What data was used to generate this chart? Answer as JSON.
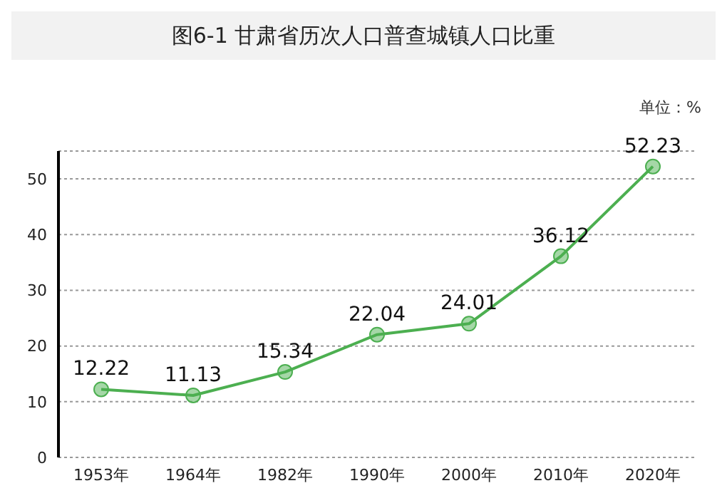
{
  "chart_data": {
    "type": "line",
    "title": "图6-1 甘肃省历次人口普查城镇人口比重",
    "annotations": [
      "单位：%"
    ],
    "categories": [
      "1953年",
      "1964年",
      "1982年",
      "1990年",
      "2000年",
      "2010年",
      "2020年"
    ],
    "series": [
      {
        "color": "#4caf50",
        "values": [
          12.22,
          11.13,
          15.34,
          22.04,
          24.01,
          36.12,
          52.23
        ]
      }
    ],
    "ylim": [
      0,
      55
    ],
    "yticks": [
      0,
      10,
      20,
      30,
      40,
      50
    ],
    "grid": "y",
    "marker": "circle",
    "line_style": "solid",
    "data_labels": true
  }
}
